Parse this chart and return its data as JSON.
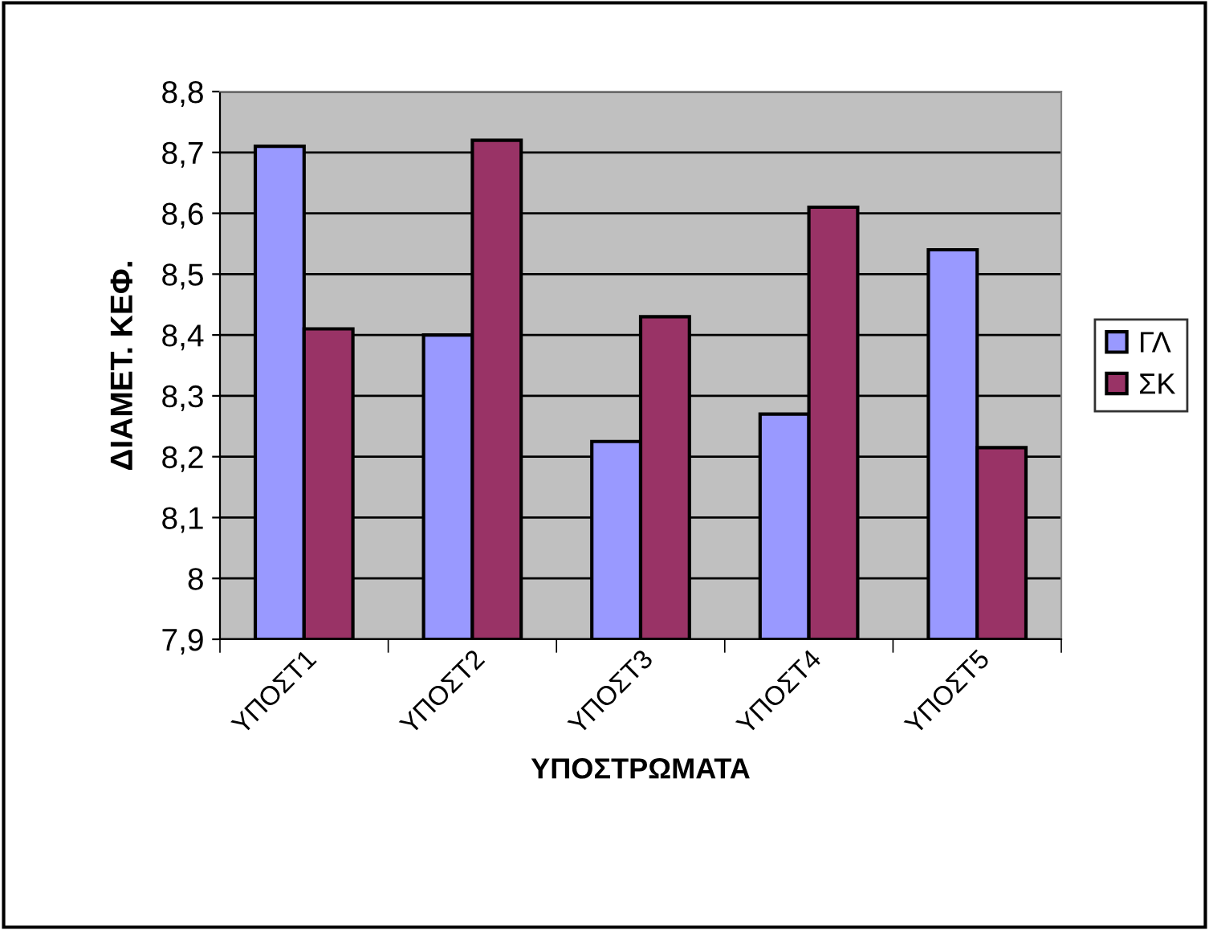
{
  "chart_data": {
    "type": "bar",
    "xlabel": "ΥΠΟΣΤΡΩΜΑΤΑ",
    "ylabel": "ΔΙΑΜΕΤ. ΚΕΦ.",
    "categories": [
      "ΥΠΟΣΤ1",
      "ΥΠΟΣΤ2",
      "ΥΠΟΣΤ3",
      "ΥΠΟΣΤ4",
      "ΥΠΟΣΤ5"
    ],
    "series": [
      {
        "name": "ΓΛ",
        "color": "#9999ff",
        "values": [
          8.71,
          8.4,
          8.225,
          8.27,
          8.54
        ]
      },
      {
        "name": "ΣΚ",
        "color": "#993366",
        "values": [
          8.41,
          8.72,
          8.43,
          8.61,
          8.215
        ]
      }
    ],
    "ylim": [
      7.9,
      8.8
    ],
    "yticks": [
      {
        "value": 7.9,
        "label": "7,9"
      },
      {
        "value": 8.0,
        "label": "8"
      },
      {
        "value": 8.1,
        "label": "8,1"
      },
      {
        "value": 8.2,
        "label": "8,2"
      },
      {
        "value": 8.3,
        "label": "8,3"
      },
      {
        "value": 8.4,
        "label": "8,4"
      },
      {
        "value": 8.5,
        "label": "8,5"
      },
      {
        "value": 8.6,
        "label": "8,6"
      },
      {
        "value": 8.7,
        "label": "8,7"
      },
      {
        "value": 8.8,
        "label": "8,8"
      }
    ],
    "grid": "y",
    "legend": "right"
  }
}
